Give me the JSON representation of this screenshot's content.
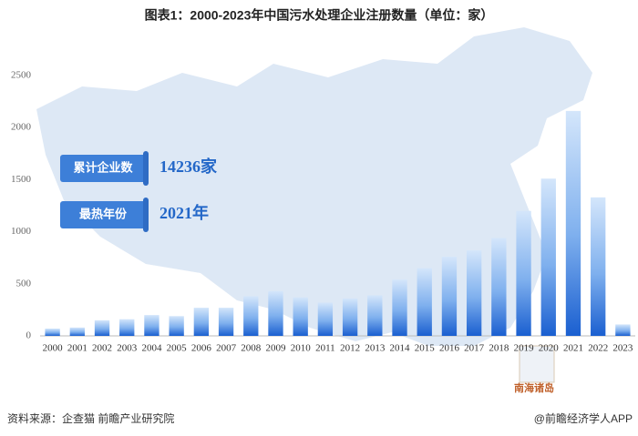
{
  "chart_data": {
    "type": "bar",
    "title": "图表1：2000-2023年中国污水处理企业注册数量（单位：家）",
    "categories": [
      "2000",
      "2001",
      "2002",
      "2003",
      "2004",
      "2005",
      "2006",
      "2007",
      "2008",
      "2009",
      "2010",
      "2011",
      "2012",
      "2013",
      "2014",
      "2015",
      "2016",
      "2017",
      "2018",
      "2019",
      "2020",
      "2021",
      "2022",
      "2023"
    ],
    "values": [
      70,
      80,
      150,
      160,
      200,
      190,
      270,
      270,
      380,
      430,
      370,
      320,
      360,
      390,
      540,
      650,
      760,
      820,
      940,
      1200,
      1510,
      2160,
      1330,
      110
    ],
    "color": "#1a5fd0",
    "ylim": [
      0,
      2500
    ],
    "yticks": [
      0,
      500,
      1000,
      1500,
      2000,
      2500
    ],
    "grid": false,
    "annotations": [
      {
        "label": "累计企业数",
        "value": "14236家"
      },
      {
        "label": "最热年份",
        "value": "2021年"
      }
    ]
  },
  "map_label": "南海诸岛",
  "footer": {
    "source": "资料来源：企查猫 前瞻产业研究院",
    "credit": "@前瞻经济学人APP"
  }
}
